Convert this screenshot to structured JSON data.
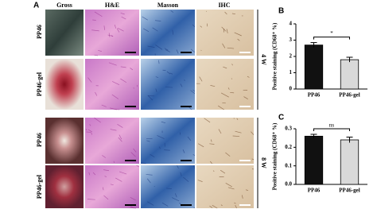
{
  "panel_a": {
    "label": "A",
    "columns": [
      "Gross",
      "H&E",
      "Masson",
      "IHC"
    ],
    "rows": [
      "PP46",
      "PP46-gel",
      "PP46",
      "PP46-gel"
    ],
    "timepoints": [
      "4 W",
      "8 W"
    ]
  },
  "chart_data": [
    {
      "type": "bar",
      "panel_label": "B",
      "ylabel": "Positive staining (CD68⁺ %)",
      "categories": [
        "PP46",
        "PP46-gel"
      ],
      "values": [
        2.7,
        1.8
      ],
      "errors": [
        0.15,
        0.15
      ],
      "colors": [
        "#111111",
        "#d9d9d9"
      ],
      "ylim": [
        0,
        4
      ],
      "yticks": [
        0,
        1,
        2,
        3,
        4
      ],
      "annotation": "*"
    },
    {
      "type": "bar",
      "panel_label": "C",
      "ylabel": "Positive staining (CD68⁺ %)",
      "categories": [
        "PP46",
        "PP46-gel"
      ],
      "values": [
        0.26,
        0.24
      ],
      "errors": [
        0.01,
        0.015
      ],
      "colors": [
        "#111111",
        "#d9d9d9"
      ],
      "ylim": [
        0,
        0.3
      ],
      "yticks": [
        {
          "value": 0,
          "label": "0.0"
        },
        {
          "value": 0.1,
          "label": "0.1"
        },
        {
          "value": 0.2,
          "label": "0.2"
        },
        {
          "value": 0.3,
          "label": "0.3"
        }
      ],
      "annotation": "ns"
    }
  ]
}
